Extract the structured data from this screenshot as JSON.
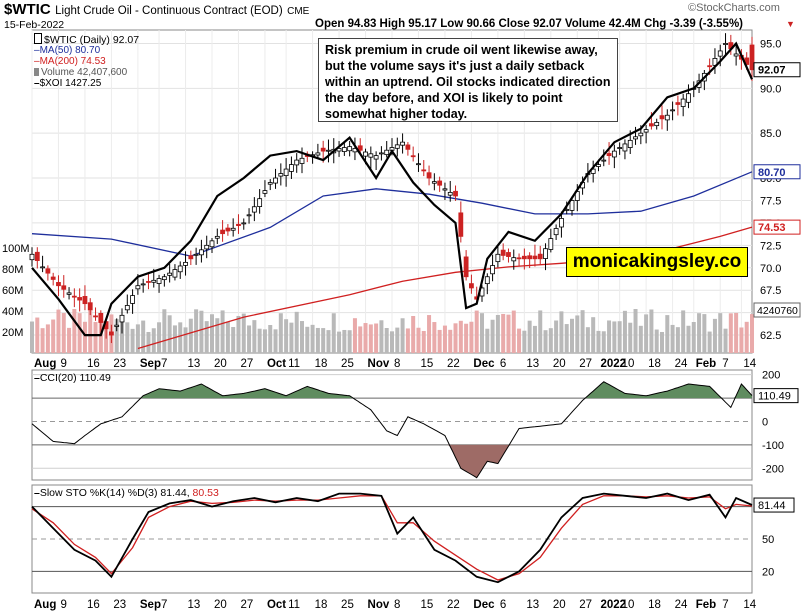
{
  "header": {
    "symbol": "$WTIC",
    "name": "Light Crude Oil - Continuous Contract (EOD)",
    "exchange": "CME",
    "date": "15-Feb-2022",
    "ohlc": "Open 94.83  High 95.17  Low 90.66  Close 92.07  Volume 42.4M  Chg -3.39 (-3.55%)",
    "brand": "©StockCharts.com"
  },
  "legend": [
    {
      "text": "$WTIC (Daily) 92.07",
      "color": "#000000",
      "marker": "candle"
    },
    {
      "text": "MA(50) 80.70",
      "color": "#1f2f9c",
      "marker": "line"
    },
    {
      "text": "MA(200) 74.53",
      "color": "#d02020",
      "marker": "line"
    },
    {
      "text": "Volume 42,407,600",
      "color": "#808080",
      "marker": "bar"
    },
    {
      "text": "$XOI 1427.25",
      "color": "#000000",
      "marker": "line"
    }
  ],
  "annotation": "Risk premium in crude oil went likewise away, but the volume says it's just a daily setback within an uptrend. Oil stocks indicated direction the day before, and XOI is likely to point somewhat higher today.",
  "watermark": "monicakingsley.co",
  "price_badges": [
    "92.07",
    "80.70",
    "74.53",
    "4240760"
  ],
  "cci_panel": {
    "label": "CCI(20) 110.49",
    "badge": "110.49",
    "ticks": [
      "200",
      "100",
      "0",
      "-100",
      "-200"
    ]
  },
  "sto_panel": {
    "label_main": "Slow STO %K(14) %D(3) 81.44,",
    "label_d": "80.53",
    "badge": "81.44",
    "ticks": [
      "80",
      "50",
      "20"
    ]
  },
  "colors": {
    "up": "#2e8b57",
    "down": "#cc2222",
    "ma50": "#1f2f9c",
    "ma200": "#d02020",
    "cci_pos": "#5f8c5f",
    "cci_neg": "#9e6b66"
  },
  "chart_data": [
    {
      "type": "candlestick",
      "title": "$WTIC Light Crude Oil - Continuous Contract (EOD)",
      "ylabel": "",
      "ylim": [
        60.5,
        96.5
      ],
      "yticks": [
        "95.0",
        "90.0",
        "85.0",
        "80.0",
        "77.5",
        "75.0",
        "72.5",
        "70.0",
        "67.5",
        "65.0",
        "62.5"
      ],
      "volume_ticks": [
        "100M",
        "80M",
        "60M",
        "40M",
        "20M"
      ],
      "x_labels": [
        "Aug",
        "9",
        "16",
        "23",
        "Sep",
        "7",
        "13",
        "20",
        "27",
        "Oct",
        "11",
        "18",
        "25",
        "Nov",
        "8",
        "15",
        "22",
        "Dec",
        "6",
        "13",
        "20",
        "27",
        "2022",
        "10",
        "18",
        "24",
        "Feb",
        "7",
        "14"
      ],
      "x_label_months": [
        "Aug",
        "Sep",
        "Oct",
        "Nov",
        "Dec",
        "2022",
        "Feb"
      ],
      "series": [
        {
          "name": "$WTIC (Daily)",
          "kind": "close",
          "x": [
            0,
            5,
            10,
            15,
            20,
            25,
            30,
            35,
            40,
            45,
            50,
            55,
            60,
            65,
            70,
            75,
            80,
            82,
            84,
            88,
            92,
            96,
            100,
            105,
            110,
            115,
            120,
            125,
            131,
            136
          ],
          "values": [
            71.5,
            68,
            66,
            62.5,
            68,
            69,
            71,
            73.5,
            75,
            79.5,
            82,
            83,
            83.5,
            82.5,
            84,
            80,
            78,
            69,
            66.5,
            71.5,
            71,
            71,
            75.5,
            80.5,
            83,
            85,
            87,
            90,
            95,
            92.07
          ]
        },
        {
          "name": "MA(50)",
          "x": [
            0,
            15,
            30,
            45,
            55,
            65,
            75,
            85,
            95,
            105,
            115,
            125,
            136
          ],
          "values": [
            73.8,
            73.2,
            71.3,
            74.5,
            78,
            78.8,
            78.2,
            77.2,
            76,
            76,
            76.3,
            78,
            80.7
          ]
        },
        {
          "name": "MA(200)",
          "x": [
            20,
            40,
            60,
            70,
            80,
            90,
            100,
            110,
            120,
            130,
            136
          ],
          "values": [
            61,
            64.5,
            67,
            68.5,
            69.5,
            70.1,
            70.5,
            71,
            72,
            73.5,
            74.53
          ]
        },
        {
          "name": "$XOI",
          "x": [
            0,
            5,
            10,
            13,
            15,
            20,
            25,
            30,
            35,
            40,
            45,
            50,
            55,
            60,
            65,
            68,
            72,
            76,
            80,
            82,
            84,
            86,
            90,
            95,
            100,
            105,
            110,
            115,
            120,
            125,
            130,
            133,
            136
          ],
          "values": [
            70,
            66.5,
            62.5,
            62.5,
            66,
            69,
            70,
            73,
            78,
            80,
            82.5,
            83,
            82,
            84.5,
            80,
            83,
            79.5,
            77,
            75,
            65.5,
            66,
            71,
            74,
            73,
            76,
            80.5,
            84,
            85.5,
            89,
            90,
            93,
            95,
            91
          ]
        }
      ]
    },
    {
      "type": "area",
      "title": "CCI(20)",
      "ylim": [
        -250,
        220
      ],
      "last": 110.49,
      "x": [
        0,
        4,
        8,
        10,
        13,
        17,
        21,
        24,
        28,
        32,
        36,
        40,
        44,
        48,
        52,
        56,
        60,
        64,
        67,
        69,
        71,
        74,
        78,
        81,
        84,
        86,
        88,
        92,
        96,
        100,
        104,
        108,
        112,
        116,
        120,
        124,
        128,
        132,
        134,
        136
      ],
      "values": [
        -10,
        -85,
        -95,
        -60,
        -10,
        20,
        110,
        140,
        130,
        160,
        110,
        120,
        140,
        110,
        150,
        120,
        110,
        50,
        -40,
        -60,
        20,
        -10,
        -60,
        -200,
        -240,
        -170,
        -180,
        -30,
        -20,
        -10,
        90,
        170,
        120,
        110,
        130,
        160,
        150,
        60,
        160,
        110.49
      ]
    },
    {
      "type": "line",
      "title": "Slow STO %K(14) %D(3)",
      "ylim": [
        0,
        100
      ],
      "x": [
        0,
        4,
        8,
        12,
        15,
        19,
        22,
        26,
        30,
        34,
        38,
        42,
        46,
        50,
        54,
        58,
        62,
        66,
        69,
        72,
        76,
        80,
        84,
        88,
        92,
        96,
        100,
        104,
        108,
        112,
        116,
        120,
        124,
        128,
        131,
        133,
        136
      ],
      "series": [
        {
          "name": "%K",
          "values": [
            80,
            60,
            40,
            30,
            15,
            50,
            75,
            83,
            86,
            80,
            85,
            88,
            84,
            88,
            85,
            92,
            92,
            90,
            55,
            70,
            40,
            30,
            15,
            10,
            20,
            40,
            70,
            88,
            92,
            90,
            88,
            92,
            86,
            91,
            70,
            88,
            81.44
          ]
        },
        {
          "name": "%D",
          "values": [
            78,
            65,
            45,
            33,
            18,
            42,
            70,
            80,
            85,
            83,
            84,
            86,
            85,
            86,
            86,
            88,
            90,
            90,
            65,
            65,
            48,
            35,
            22,
            12,
            18,
            33,
            60,
            82,
            90,
            90,
            89,
            90,
            88,
            89,
            78,
            82,
            80.53
          ]
        }
      ]
    }
  ]
}
